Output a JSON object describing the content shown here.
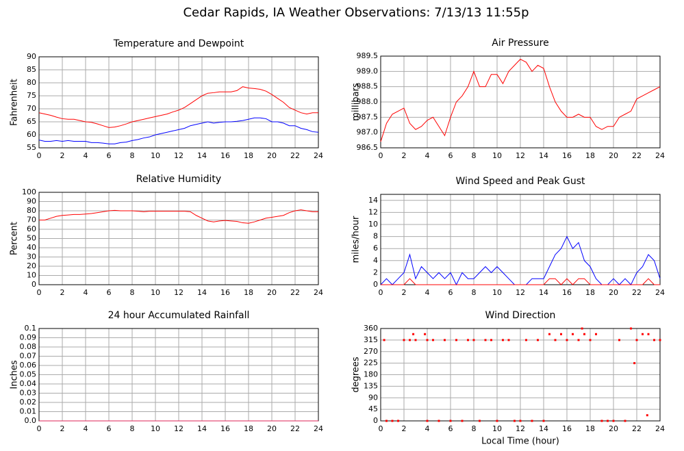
{
  "title": "Cedar Rapids, IA Weather Observations: 7/13/13 11:55p",
  "chart_data": [
    {
      "type": "line",
      "title": "Temperature and Dewpoint",
      "ylabel": "Fahrenheit",
      "grid": true,
      "xlim": [
        0,
        24
      ],
      "xticks": [
        0,
        2,
        4,
        6,
        8,
        10,
        12,
        14,
        16,
        18,
        20,
        22,
        24
      ],
      "ylim": [
        55,
        90
      ],
      "yticks": [
        55,
        60,
        65,
        70,
        75,
        80,
        85,
        90
      ],
      "x": [
        0,
        0.5,
        1,
        1.5,
        2,
        2.5,
        3,
        3.5,
        4,
        4.5,
        5,
        5.5,
        6,
        6.5,
        7,
        7.5,
        8,
        8.5,
        9,
        9.5,
        10,
        10.5,
        11,
        11.5,
        12,
        12.5,
        13,
        13.5,
        14,
        14.5,
        15,
        15.5,
        16,
        16.5,
        17,
        17.5,
        18,
        18.5,
        19,
        19.5,
        20,
        20.5,
        21,
        21.5,
        22,
        22.5,
        23,
        23.5,
        24
      ],
      "series": [
        {
          "color": "#ff0000",
          "values": [
            68.5,
            68,
            67.5,
            66.8,
            66.2,
            66,
            66,
            65.5,
            65,
            64.8,
            64.2,
            63.5,
            62.8,
            63,
            63.5,
            64.2,
            65,
            65.5,
            66,
            66.5,
            67,
            67.5,
            68,
            68.8,
            69.5,
            70.5,
            72,
            73.5,
            75,
            76,
            76.2,
            76.5,
            76.5,
            76.5,
            77,
            78.5,
            78,
            77.8,
            77.5,
            76.8,
            75.5,
            74,
            72.5,
            70.5,
            69.5,
            68.5,
            68,
            68.5,
            68.5
          ]
        },
        {
          "color": "#0000ff",
          "values": [
            58,
            57.5,
            57.5,
            57.8,
            57.5,
            57.8,
            57.5,
            57.5,
            57.5,
            57,
            57,
            56.8,
            56.5,
            56.5,
            57,
            57.2,
            57.8,
            58.2,
            58.8,
            59.2,
            60,
            60.5,
            61,
            61.5,
            62,
            62.5,
            63.5,
            64,
            64.5,
            65,
            64.5,
            64.8,
            65,
            65,
            65.2,
            65.5,
            66,
            66.5,
            66.5,
            66.2,
            65,
            65,
            64.5,
            63.5,
            63.5,
            62.5,
            62,
            61.2,
            61
          ]
        }
      ]
    },
    {
      "type": "line",
      "title": "Air Pressure",
      "ylabel": "millibars",
      "grid": true,
      "xlim": [
        0,
        24
      ],
      "xticks": [
        0,
        2,
        4,
        6,
        8,
        10,
        12,
        14,
        16,
        18,
        20,
        22,
        24
      ],
      "ylim": [
        986.5,
        989.5
      ],
      "yticks": [
        986.5,
        {
          "value": 987,
          "label": "987.0"
        },
        987.5,
        {
          "value": 988,
          "label": "988.0"
        },
        988.5,
        {
          "value": 989,
          "label": "989.0"
        },
        989.5
      ],
      "x": [
        0,
        0.5,
        1,
        1.5,
        2,
        2.5,
        3,
        3.5,
        4,
        4.5,
        5,
        5.5,
        6,
        6.5,
        7,
        7.5,
        8,
        8.5,
        9,
        9.5,
        10,
        10.5,
        11,
        11.5,
        12,
        12.5,
        13,
        13.5,
        14,
        14.5,
        15,
        15.5,
        16,
        16.5,
        17,
        17.5,
        18,
        18.5,
        19,
        19.5,
        20,
        20.5,
        21,
        21.5,
        22,
        22.5,
        23,
        23.5,
        24
      ],
      "series": [
        {
          "color": "#ff0000",
          "values": [
            986.7,
            987.3,
            987.6,
            987.7,
            987.8,
            987.3,
            987.1,
            987.2,
            987.4,
            987.5,
            987.2,
            986.9,
            987.5,
            988.0,
            988.2,
            988.5,
            989.0,
            988.5,
            988.5,
            988.9,
            988.9,
            988.6,
            989.0,
            989.2,
            989.4,
            989.3,
            989.0,
            989.2,
            989.1,
            988.5,
            988.0,
            987.7,
            987.5,
            987.5,
            987.6,
            987.5,
            987.5,
            987.2,
            987.1,
            987.2,
            987.2,
            987.5,
            987.6,
            987.7,
            988.1,
            988.2,
            988.3,
            988.4,
            988.5
          ]
        }
      ]
    },
    {
      "type": "line",
      "title": "Relative Humidity",
      "ylabel": "Percent",
      "grid": true,
      "xlim": [
        0,
        24
      ],
      "xticks": [
        0,
        2,
        4,
        6,
        8,
        10,
        12,
        14,
        16,
        18,
        20,
        22,
        24
      ],
      "ylim": [
        0,
        100
      ],
      "yticks": [
        0,
        10,
        20,
        30,
        40,
        50,
        60,
        70,
        80,
        90,
        100
      ],
      "x": [
        0,
        0.5,
        1,
        1.5,
        2,
        2.5,
        3,
        3.5,
        4,
        4.5,
        5,
        5.5,
        6,
        6.5,
        7,
        7.5,
        8,
        8.5,
        9,
        9.5,
        10,
        10.5,
        11,
        11.5,
        12,
        12.5,
        13,
        13.5,
        14,
        14.5,
        15,
        15.5,
        16,
        16.5,
        17,
        17.5,
        18,
        18.5,
        19,
        19.5,
        20,
        20.5,
        21,
        21.5,
        22,
        22.5,
        23,
        23.5,
        24
      ],
      "series": [
        {
          "color": "#ff0000",
          "values": [
            70,
            70,
            72,
            74,
            75,
            75.5,
            76,
            76,
            76.5,
            77,
            78,
            79,
            80,
            80.5,
            80,
            80,
            80,
            79.5,
            79,
            79.5,
            79.5,
            79.5,
            79.5,
            79.5,
            79.5,
            79.5,
            79,
            75,
            72,
            69,
            68,
            69,
            69.5,
            69,
            68.5,
            67,
            66.5,
            68,
            70,
            72,
            73,
            74,
            75,
            78,
            80,
            81,
            80,
            79,
            79
          ]
        }
      ]
    },
    {
      "type": "line",
      "title": "Wind Speed and Peak Gust",
      "ylabel": "miles/hour",
      "grid": true,
      "xlim": [
        0,
        24
      ],
      "xticks": [
        0,
        2,
        4,
        6,
        8,
        10,
        12,
        14,
        16,
        18,
        20,
        22,
        24
      ],
      "ylim": [
        0,
        15
      ],
      "yticks": [
        0,
        2,
        4,
        6,
        8,
        10,
        12,
        14
      ],
      "x": [
        0,
        0.5,
        1,
        1.5,
        2,
        2.5,
        3,
        3.5,
        4,
        4.5,
        5,
        5.5,
        6,
        6.5,
        7,
        7.5,
        8,
        8.5,
        9,
        9.5,
        10,
        10.5,
        11,
        11.5,
        12,
        12.5,
        13,
        13.5,
        14,
        14.5,
        15,
        15.5,
        16,
        16.5,
        17,
        17.5,
        18,
        18.5,
        19,
        19.5,
        20,
        20.5,
        21,
        21.5,
        22,
        22.5,
        23,
        23.5,
        24
      ],
      "series": [
        {
          "color": "#0000ff",
          "values": [
            0,
            1,
            0,
            1,
            2,
            5,
            1,
            3,
            2,
            1,
            2,
            1,
            2,
            0,
            2,
            1,
            1,
            2,
            3,
            2,
            3,
            2,
            1,
            0,
            0,
            0,
            1,
            1,
            1,
            3,
            5,
            6,
            8,
            6,
            7,
            4,
            3,
            1,
            0,
            0,
            1,
            0,
            1,
            0,
            2,
            3,
            5,
            4,
            1
          ]
        },
        {
          "color": "#ff0000",
          "values": [
            0,
            0,
            0,
            0,
            0,
            1,
            0,
            0,
            0,
            0,
            0,
            0,
            0,
            0,
            0,
            0,
            0,
            0,
            0,
            0,
            0,
            0,
            0,
            0,
            0,
            0,
            0,
            0,
            0,
            1,
            1,
            0,
            1,
            0,
            1,
            1,
            0,
            0,
            0,
            0,
            0,
            0,
            0,
            0,
            0,
            0,
            1,
            0,
            0
          ]
        }
      ]
    },
    {
      "type": "line",
      "title": "24 hour Accumulated Rainfall",
      "ylabel": "Inches",
      "grid": true,
      "xlim": [
        0,
        24
      ],
      "xticks": [
        0,
        2,
        4,
        6,
        8,
        10,
        12,
        14,
        16,
        18,
        20,
        22,
        24
      ],
      "ylim": [
        0,
        0.1
      ],
      "yticks": [
        {
          "value": 0,
          "label": "0.0"
        },
        0.01,
        0.02,
        0.03,
        0.04,
        0.05,
        0.06,
        0.07,
        0.08,
        0.09,
        0.1
      ],
      "x": [
        0,
        0.5,
        1,
        1.5,
        2,
        2.5,
        3,
        3.5,
        4,
        4.5,
        5,
        5.5,
        6,
        6.5,
        7,
        7.5,
        8,
        8.5,
        9,
        9.5,
        10,
        10.5,
        11,
        11.5,
        12,
        12.5,
        13,
        13.5,
        14,
        14.5,
        15,
        15.5,
        16,
        16.5,
        17,
        17.5,
        18,
        18.5,
        19,
        19.5,
        20,
        20.5,
        21,
        21.5,
        22,
        22.5,
        23,
        23.5,
        24
      ],
      "series": [
        {
          "color": "#dd2255",
          "values": [
            0,
            0,
            0,
            0,
            0,
            0,
            0,
            0,
            0,
            0,
            0,
            0,
            0,
            0,
            0,
            0,
            0,
            0,
            0,
            0,
            0,
            0,
            0,
            0,
            0,
            0,
            0,
            0,
            0,
            0,
            0,
            0,
            0,
            0,
            0,
            0,
            0,
            0,
            0,
            0,
            0,
            0,
            0,
            0,
            0,
            0,
            0,
            0,
            0
          ]
        }
      ]
    },
    {
      "type": "scatter",
      "title": "Wind Direction",
      "ylabel": "degrees",
      "xlabel": "Local Time (hour)",
      "grid": true,
      "xlim": [
        0,
        24
      ],
      "xticks": [
        0,
        2,
        4,
        6,
        8,
        10,
        12,
        14,
        16,
        18,
        20,
        22,
        24
      ],
      "ylim": [
        0,
        360
      ],
      "yticks": [
        0,
        45,
        90,
        135,
        180,
        225,
        270,
        315,
        360
      ],
      "x": [
        0.3,
        0.5,
        1,
        1.5,
        2,
        2.5,
        2.8,
        3,
        3.8,
        4,
        4,
        4.5,
        5,
        5.5,
        6,
        6.5,
        7,
        7.5,
        8,
        8.5,
        9,
        9.5,
        10,
        10.5,
        11,
        11.5,
        12,
        12.5,
        13,
        13.5,
        14,
        14.5,
        15,
        15.5,
        16,
        16.5,
        17,
        17.3,
        17.5,
        18,
        18.5,
        19,
        19.5,
        20,
        20.5,
        21,
        21.5,
        21.8,
        22,
        22.5,
        22.9,
        23,
        23.5,
        24
      ],
      "series": [
        {
          "color": "#ff0000",
          "values": [
            315,
            0,
            0,
            0,
            315,
            315,
            338,
            315,
            338,
            315,
            0,
            315,
            0,
            315,
            0,
            315,
            0,
            315,
            315,
            0,
            315,
            315,
            0,
            315,
            315,
            0,
            0,
            315,
            0,
            315,
            0,
            338,
            315,
            338,
            315,
            338,
            315,
            360,
            338,
            315,
            338,
            0,
            0,
            0,
            315,
            0,
            360,
            225,
            315,
            338,
            22,
            338,
            315,
            315
          ]
        }
      ]
    }
  ]
}
